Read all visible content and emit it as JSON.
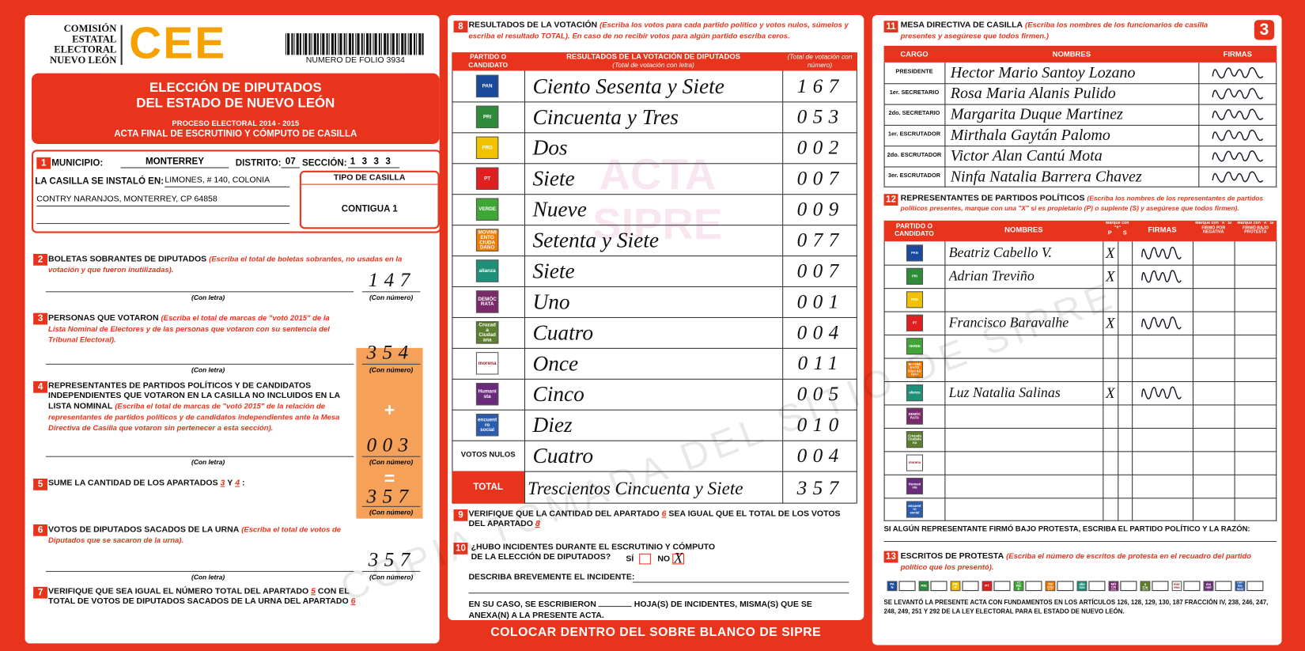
{
  "header": {
    "org": [
      "COMISIÓN",
      "ESTATAL",
      "ELECTORAL",
      "NUEVO LEÓN"
    ],
    "logo": "CEE",
    "folio": "NUMERO DE FOLIO 3934",
    "page_number": "3"
  },
  "title": {
    "line1": "ELECCIÓN DE DIPUTADOS",
    "line2": "DEL ESTADO DE NUEVO LEÓN",
    "process": "PROCESO ELECTORAL 2014 - 2015",
    "act": "ACTA FINAL DE ESCRUTINIO Y CÓMPUTO DE CASILLA"
  },
  "parties": [
    {
      "name": "PAN",
      "color": "#1b4a9c"
    },
    {
      "name": "PRI",
      "color": "#2e8b3a"
    },
    {
      "name": "PRD",
      "color": "#f2c200"
    },
    {
      "name": "PT",
      "color": "#e02020"
    },
    {
      "name": "VERDE",
      "color": "#3fa535"
    },
    {
      "name": "MOVIMIENTO CIUDADANO",
      "color": "#f07c00"
    },
    {
      "name": "alianza",
      "color": "#1f8f7a"
    },
    {
      "name": "DEMÓCRATA",
      "color": "#7a2a6a"
    },
    {
      "name": "Cruzada Ciudadana",
      "color": "#5d7f2f"
    },
    {
      "name": "morena",
      "color": "#a0182b"
    },
    {
      "name": "Humanista",
      "color": "#6a2b7d"
    },
    {
      "name": "encuentro social",
      "color": "#2a5db0"
    }
  ],
  "s1": {
    "num": "1",
    "municipio_label": "MUNICIPIO:",
    "municipio": "MONTERREY",
    "distrito_label": "DISTRITO:",
    "distrito": "07",
    "seccion_label": "SECCIÓN:",
    "seccion": "1333",
    "casilla_label": "LA CASILLA SE INSTALÓ EN:",
    "address1": "LIMONES, # 140, COLONIA",
    "address2": "CONTRY NARANJOS, MONTERREY, CP 64858",
    "tipo_label": "TIPO DE CASILLA",
    "tipo": "CONTIGUA 1"
  },
  "s2": {
    "num": "2",
    "title": "BOLETAS SOBRANTES DE DIPUTADOS",
    "instruction": "(Escriba el total de boletas sobrantes, no usadas en la votación y que fueron inutilizadas).",
    "con_letra": "(Con letra)",
    "con_numero": "(Con número)",
    "value": "147"
  },
  "s3": {
    "num": "3",
    "title": "PERSONAS QUE VOTARON",
    "instruction": "(Escriba el total de marcas de \"votó 2015\" de la Lista Nominal de Electores y de las personas que votaron con su sentencia del Tribunal Electoral).",
    "con_letra": "(Con letra)",
    "con_numero": "(Con número)",
    "value": "354"
  },
  "s4": {
    "num": "4",
    "title": "REPRESENTANTES DE PARTIDOS POLÍTICOS Y DE CANDIDATOS INDEPENDIENTES QUE VOTARON EN LA CASILLA NO INCLUIDOS EN LA LISTA NOMINAL",
    "instruction": "(Escriba el total de marcas de \"votó 2015\" de la relación de representantes de partidos políticos y de candidatos independientes ante la Mesa Directiva de Casilla que votaron sin pertenecer a esta sección).",
    "sign": "+",
    "con_letra": "(Con letra)",
    "con_numero": "(Con número)",
    "value": "003"
  },
  "s5": {
    "num": "5",
    "title": "SUME LA CANTIDAD DE LOS APARTADOS",
    "a": "3",
    "y": "Y",
    "b": "4",
    "colon": ":",
    "sign": "=",
    "value": "357",
    "con_numero": "(Con número)"
  },
  "s6": {
    "num": "6",
    "title": "VOTOS DE DIPUTADOS SACADOS DE LA URNA",
    "instruction": "(Escriba el total de votos de Diputados que se sacaron de la urna).",
    "con_letra": "(Con letra)",
    "con_numero": "(Con número)",
    "value": "357"
  },
  "s7": {
    "num": "7",
    "text1": "VERIFIQUE QUE SEA IGUAL EL NÚMERO TOTAL DEL APARTADO",
    "a": "5",
    "text2": "CON EL TOTAL DE VOTOS DE DIPUTADOS SACADOS DE LA URNA DEL APARTADO",
    "b": "6"
  },
  "s8": {
    "num": "8",
    "title": "RESULTADOS DE LA VOTACIÓN",
    "instruction": "(Escriba los votos para cada partido político y votos nulos, súmelos y escriba el resultado TOTAL).",
    "note": "En caso de no recibir votos para algún partido escriba ceros.",
    "col_party": "PARTIDO O CANDIDATO",
    "col_words": "RESULTADOS DE LA VOTACIÓN DE DIPUTADOS",
    "col_words_note": "(Total de votación con letra)",
    "col_number": "(Total de votación con número)",
    "watermark": "ACTA SIPRE",
    "rows": [
      {
        "words": "Ciento Sesenta y Siete",
        "number": "167"
      },
      {
        "words": "Cincuenta y Tres",
        "number": "053"
      },
      {
        "words": "Dos",
        "number": "002"
      },
      {
        "words": "Siete",
        "number": "007"
      },
      {
        "words": "Nueve",
        "number": "009"
      },
      {
        "words": "Setenta y Siete",
        "number": "077"
      },
      {
        "words": "Siete",
        "number": "007"
      },
      {
        "words": "Uno",
        "number": "001"
      },
      {
        "words": "Cuatro",
        "number": "004"
      },
      {
        "words": "Once",
        "number": "011"
      },
      {
        "words": "Cinco",
        "number": "005"
      },
      {
        "words": "Diez",
        "number": "010"
      }
    ],
    "null_label": "VOTOS NULOS",
    "null_words": "Cuatro",
    "null_number": "004",
    "total_label": "TOTAL",
    "total_words": "Trescientos Cincuenta y Siete",
    "total_number": "357"
  },
  "s9": {
    "num": "9",
    "text1": "VERIFIQUE QUE LA CANTIDAD DEL APARTADO",
    "a": "6",
    "text2": "SEA IGUAL QUE EL TOTAL DE LOS VOTOS DEL APARTADO",
    "b": "8"
  },
  "s10": {
    "num": "10",
    "question": "¿HUBO INCIDENTES DURANTE EL ESCRUTINIO Y CÓMPUTO DE LA ELECCIÓN DE DIPUTADOS?",
    "yes": "SÍ",
    "no": "NO",
    "mark": "X",
    "describe": "DESCRIBA BREVEMENTE EL INCIDENTE:",
    "sheets1": "EN SU CASO, SE ESCRIBIERON",
    "sheets2": "HOJA(S) DE INCIDENTES, MISMA(S) QUE SE ANEXA(N) A LA PRESENTE ACTA."
  },
  "footer": "COLOCAR DENTRO DEL SOBRE BLANCO DE SIPRE",
  "s11": {
    "num": "11",
    "title": "MESA DIRECTIVA DE CASILLA",
    "instruction": "(Escriba los nombres de los funcionarios de casilla presentes y asegúrese que todos firmen.)",
    "col_cargo": "CARGO",
    "col_names": "NOMBRES",
    "col_firmas": "FIRMAS",
    "rows": [
      {
        "cargo": "PRESIDENTE",
        "name": "Hector Mario Santoy Lozano"
      },
      {
        "cargo": "1er. SECRETARIO",
        "name": "Rosa Maria Alanis Pulido"
      },
      {
        "cargo": "2do. SECRETARIO",
        "name": "Margarita Duque Martinez"
      },
      {
        "cargo": "1er. ESCRUTADOR",
        "name": "Mirthala Gaytán Palomo"
      },
      {
        "cargo": "2do. ESCRUTADOR",
        "name": "Victor Alan Cantú Mota"
      },
      {
        "cargo": "3er. ESCRUTADOR",
        "name": "Ninfa Natalia Barrera Chavez"
      }
    ]
  },
  "s12": {
    "num": "12",
    "title": "REPRESENTANTES DE PARTIDOS POLÍTICOS",
    "instruction": "(Escriba los nombres de los representantes de partidos políticos presentes, marque con una \"X\" si es propietario (P) o suplente (S) y asegúrese que todos firmen).",
    "col_party": "PARTIDO O CANDIDATO",
    "col_names": "NOMBRES",
    "col_mark": "Marque con \"X\"",
    "col_p": "P",
    "col_s": "S",
    "col_firmas": "FIRMAS",
    "col_negativa": "Marque con \"X\" SI FIRMÓ POR NEGATIVA",
    "col_protesta": "Marque con \"X\" SI FIRMÓ BAJO PROTESTA",
    "reps": [
      {
        "name": "Beatriz Cabello V.",
        "mark": "X"
      },
      {
        "name": "Adrian Treviño",
        "mark": "X"
      },
      null,
      {
        "name": "Francisco Baravalhe",
        "mark": "X"
      },
      null,
      null,
      {
        "name": "Luz Natalia Salinas",
        "mark": "X"
      },
      null,
      null,
      null,
      null,
      null
    ],
    "protest_note": "SI ALGÚN REPRESENTANTE FIRMÓ BAJO PROTESTA, ESCRIBA EL PARTIDO POLÍTICO Y LA RAZÓN:"
  },
  "s13": {
    "num": "13",
    "title": "ESCRITOS DE PROTESTA",
    "instruction": "(Escriba el número de escritos de protesta en el recuadro del partido político que los presentó).",
    "legal": "SE LEVANTÓ LA PRESENTE ACTA CON FUNDAMENTOS EN LOS ARTÍCULOS 126, 128, 129, 130, 187 FRACCIÓN IV, 238, 246, 247, 248, 249, 251 Y 292 DE LA LEY ELECTORAL PARA EL ESTADO DE NUEVO LEÓN."
  },
  "watermark": "COPIA TOMADA DEL SITIO DE SIPRE"
}
